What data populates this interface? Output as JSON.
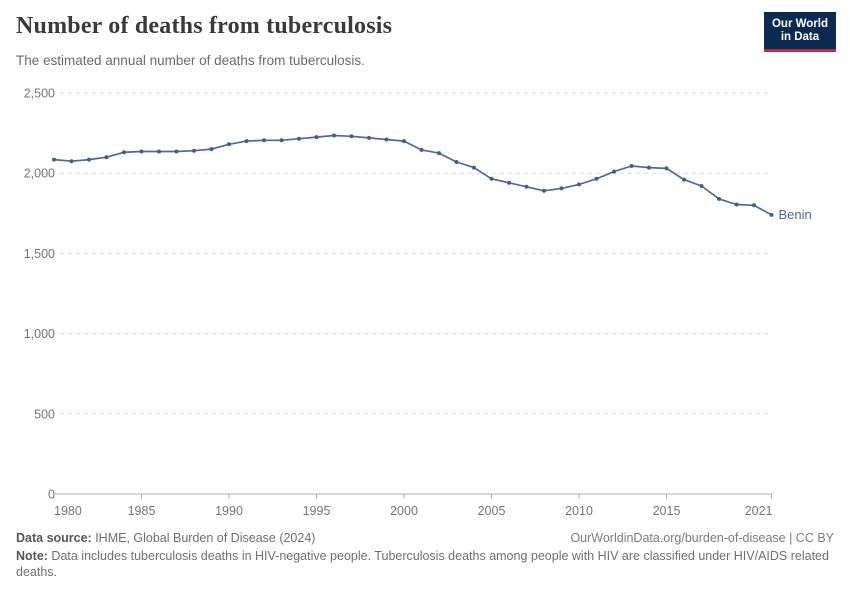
{
  "header": {
    "title": "Number of deaths from tuberculosis",
    "subtitle": "The estimated annual number of deaths from tuberculosis.",
    "logo_line1": "Our World",
    "logo_line2": "in Data"
  },
  "chart_data": {
    "type": "line",
    "title": "Number of deaths from tuberculosis",
    "xlabel": "",
    "ylabel": "",
    "xlim": [
      1980,
      2021
    ],
    "ylim": [
      0,
      2500
    ],
    "grid": "horizontal-dashed",
    "legend_position": "end-of-line-label",
    "x_ticks": [
      1980,
      1985,
      1990,
      1995,
      2000,
      2005,
      2010,
      2015,
      2021
    ],
    "y_ticks": [
      0,
      500,
      1000,
      1500,
      2000,
      2500
    ],
    "y_tick_labels": [
      "0",
      "500",
      "1,000",
      "1,500",
      "2,000",
      "2,500"
    ],
    "series": [
      {
        "name": "Benin",
        "color": "#4C6A9C",
        "x": [
          1980,
          1981,
          1982,
          1983,
          1984,
          1985,
          1986,
          1987,
          1988,
          1989,
          1990,
          1991,
          1992,
          1993,
          1994,
          1995,
          1996,
          1997,
          1998,
          1999,
          2000,
          2001,
          2002,
          2003,
          2004,
          2005,
          2006,
          2007,
          2008,
          2009,
          2010,
          2011,
          2012,
          2013,
          2014,
          2015,
          2016,
          2017,
          2018,
          2019,
          2020,
          2021
        ],
        "values": [
          2085,
          2075,
          2085,
          2100,
          2130,
          2135,
          2135,
          2135,
          2140,
          2150,
          2180,
          2200,
          2205,
          2205,
          2215,
          2225,
          2235,
          2230,
          2220,
          2210,
          2200,
          2145,
          2125,
          2070,
          2035,
          1965,
          1940,
          1915,
          1890,
          1905,
          1930,
          1965,
          2010,
          2045,
          2035,
          2030,
          1960,
          1920,
          1840,
          1805,
          1800,
          1740
        ]
      }
    ]
  },
  "footer": {
    "source_label": "Data source:",
    "source_text": " IHME, Global Burden of Disease (2024)",
    "link": "OurWorldinData.org/burden-of-disease | CC BY",
    "note_label": "Note:",
    "note_text": " Data includes tuberculosis deaths in HIV-negative people. Tuberculosis deaths among people with HIV are classified under HIV/AIDS related deaths."
  }
}
